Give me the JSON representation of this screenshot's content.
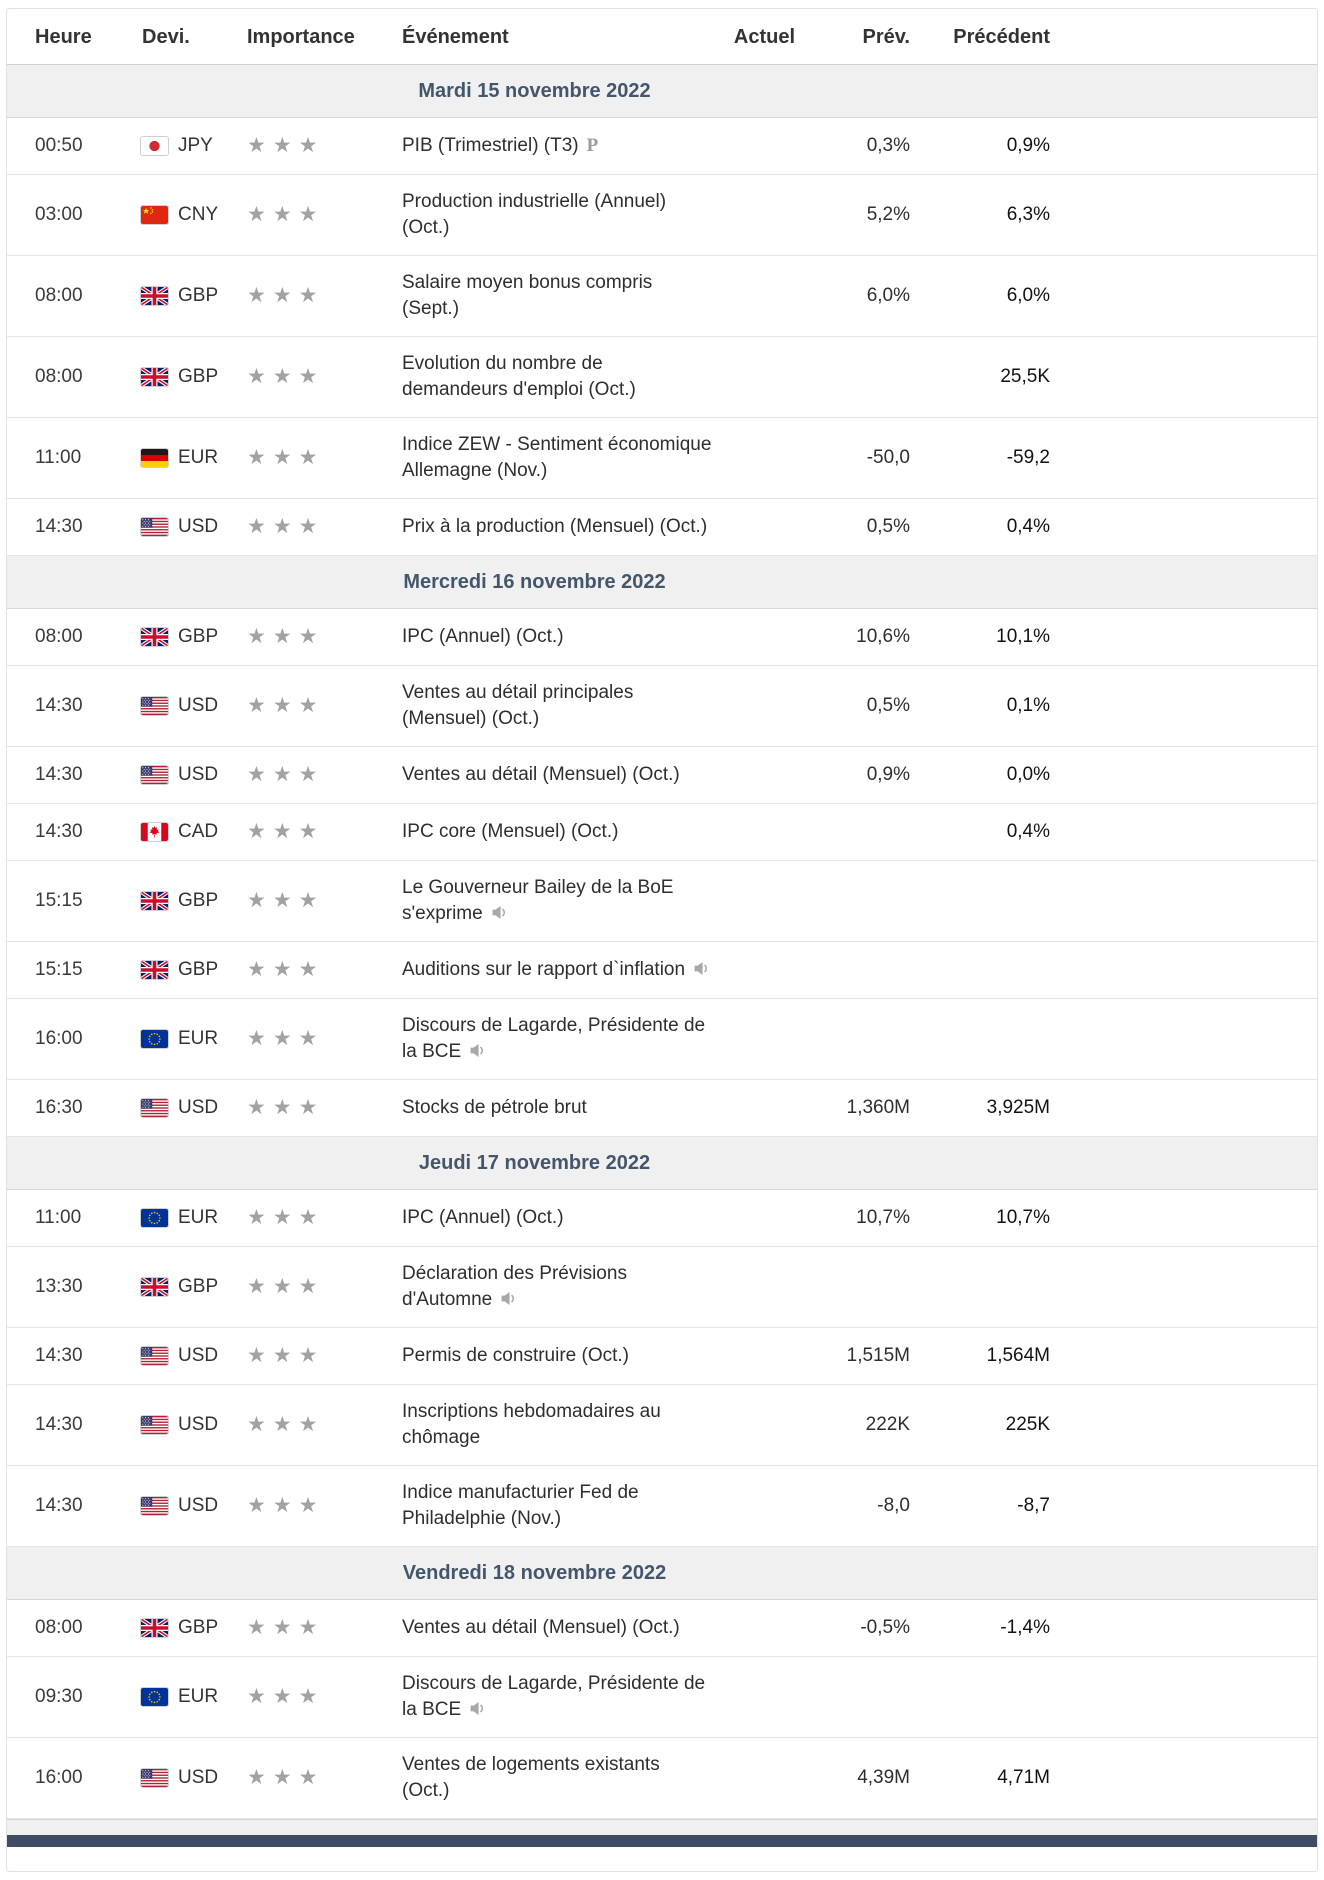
{
  "columns": [
    "Heure",
    "Devi.",
    "Importance",
    "Événement",
    "Actuel",
    "Prév.",
    "Précédent"
  ],
  "colors": {
    "day_header_bg": "#f0f0f0",
    "day_header_text": "#44566b",
    "star": "#a2a2a2",
    "row_border": "#e4e4e4"
  },
  "importance_max": 3,
  "sections": [
    {
      "date_label": "Mardi 15 novembre 2022",
      "rows": [
        {
          "time": "00:50",
          "currency": "JPY",
          "flag": "jp",
          "stars": 3,
          "event": "PIB (Trimestriel) (T3)",
          "icon": "preliminary-icon",
          "actual": "",
          "forecast": "0,3%",
          "previous": "0,9%"
        },
        {
          "time": "03:00",
          "currency": "CNY",
          "flag": "cn",
          "stars": 3,
          "event": "Production industrielle (Annuel) (Oct.)",
          "actual": "",
          "forecast": "5,2%",
          "previous": "6,3%"
        },
        {
          "time": "08:00",
          "currency": "GBP",
          "flag": "gb",
          "stars": 3,
          "event": "Salaire moyen bonus compris (Sept.)",
          "actual": "",
          "forecast": "6,0%",
          "previous": "6,0%"
        },
        {
          "time": "08:00",
          "currency": "GBP",
          "flag": "gb",
          "stars": 3,
          "event": "Evolution du nombre de demandeurs d'emploi (Oct.)",
          "actual": "",
          "forecast": "",
          "previous": "25,5K"
        },
        {
          "time": "11:00",
          "currency": "EUR",
          "flag": "de",
          "stars": 3,
          "event": "Indice ZEW - Sentiment économique Allemagne (Nov.)",
          "actual": "",
          "forecast": "-50,0",
          "previous": "-59,2"
        },
        {
          "time": "14:30",
          "currency": "USD",
          "flag": "us",
          "stars": 3,
          "event": "Prix à la production (Mensuel) (Oct.)",
          "actual": "",
          "forecast": "0,5%",
          "previous": "0,4%"
        }
      ]
    },
    {
      "date_label": "Mercredi 16 novembre 2022",
      "rows": [
        {
          "time": "08:00",
          "currency": "GBP",
          "flag": "gb",
          "stars": 3,
          "event": "IPC (Annuel) (Oct.)",
          "actual": "",
          "forecast": "10,6%",
          "previous": "10,1%"
        },
        {
          "time": "14:30",
          "currency": "USD",
          "flag": "us",
          "stars": 3,
          "event": "Ventes au détail principales (Mensuel) (Oct.)",
          "actual": "",
          "forecast": "0,5%",
          "previous": "0,1%"
        },
        {
          "time": "14:30",
          "currency": "USD",
          "flag": "us",
          "stars": 3,
          "event": "Ventes au détail (Mensuel) (Oct.)",
          "actual": "",
          "forecast": "0,9%",
          "previous": "0,0%"
        },
        {
          "time": "14:30",
          "currency": "CAD",
          "flag": "ca",
          "stars": 3,
          "event": "IPC core (Mensuel) (Oct.)",
          "actual": "",
          "forecast": "",
          "previous": "0,4%"
        },
        {
          "time": "15:15",
          "currency": "GBP",
          "flag": "gb",
          "stars": 3,
          "event": "Le Gouverneur Bailey de la BoE s'exprime",
          "icon": "speaker-icon",
          "actual": "",
          "forecast": "",
          "previous": ""
        },
        {
          "time": "15:15",
          "currency": "GBP",
          "flag": "gb",
          "stars": 3,
          "event": "Auditions sur le rapport d`inflation",
          "icon": "speaker-icon",
          "actual": "",
          "forecast": "",
          "previous": ""
        },
        {
          "time": "16:00",
          "currency": "EUR",
          "flag": "eu",
          "stars": 3,
          "event": "Discours de Lagarde, Présidente de la BCE",
          "icon": "speaker-icon",
          "actual": "",
          "forecast": "",
          "previous": ""
        },
        {
          "time": "16:30",
          "currency": "USD",
          "flag": "us",
          "stars": 3,
          "event": "Stocks de pétrole brut",
          "actual": "",
          "forecast": "1,360M",
          "previous": "3,925M"
        }
      ]
    },
    {
      "date_label": "Jeudi 17 novembre 2022",
      "rows": [
        {
          "time": "11:00",
          "currency": "EUR",
          "flag": "eu",
          "stars": 3,
          "event": "IPC (Annuel) (Oct.)",
          "actual": "",
          "forecast": "10,7%",
          "previous": "10,7%"
        },
        {
          "time": "13:30",
          "currency": "GBP",
          "flag": "gb",
          "stars": 3,
          "event": "Déclaration des Prévisions d'Automne",
          "icon": "speaker-icon",
          "actual": "",
          "forecast": "",
          "previous": ""
        },
        {
          "time": "14:30",
          "currency": "USD",
          "flag": "us",
          "stars": 3,
          "event": "Permis de construire (Oct.)",
          "actual": "",
          "forecast": "1,515M",
          "previous": "1,564M"
        },
        {
          "time": "14:30",
          "currency": "USD",
          "flag": "us",
          "stars": 3,
          "event": "Inscriptions hebdomadaires au chômage",
          "actual": "",
          "forecast": "222K",
          "previous": "225K"
        },
        {
          "time": "14:30",
          "currency": "USD",
          "flag": "us",
          "stars": 3,
          "event": "Indice manufacturier Fed de Philadelphie (Nov.)",
          "actual": "",
          "forecast": "-8,0",
          "previous": "-8,7"
        }
      ]
    },
    {
      "date_label": "Vendredi 18 novembre 2022",
      "rows": [
        {
          "time": "08:00",
          "currency": "GBP",
          "flag": "gb",
          "stars": 3,
          "event": "Ventes au détail (Mensuel) (Oct.)",
          "actual": "",
          "forecast": "-0,5%",
          "previous": "-1,4%"
        },
        {
          "time": "09:30",
          "currency": "EUR",
          "flag": "eu",
          "stars": 3,
          "event": "Discours de Lagarde, Présidente de la BCE",
          "icon": "speaker-icon",
          "actual": "",
          "forecast": "",
          "previous": ""
        },
        {
          "time": "16:00",
          "currency": "USD",
          "flag": "us",
          "stars": 3,
          "event": "Ventes de logements existants (Oct.)",
          "actual": "",
          "forecast": "4,39M",
          "previous": "4,71M"
        }
      ]
    }
  ]
}
